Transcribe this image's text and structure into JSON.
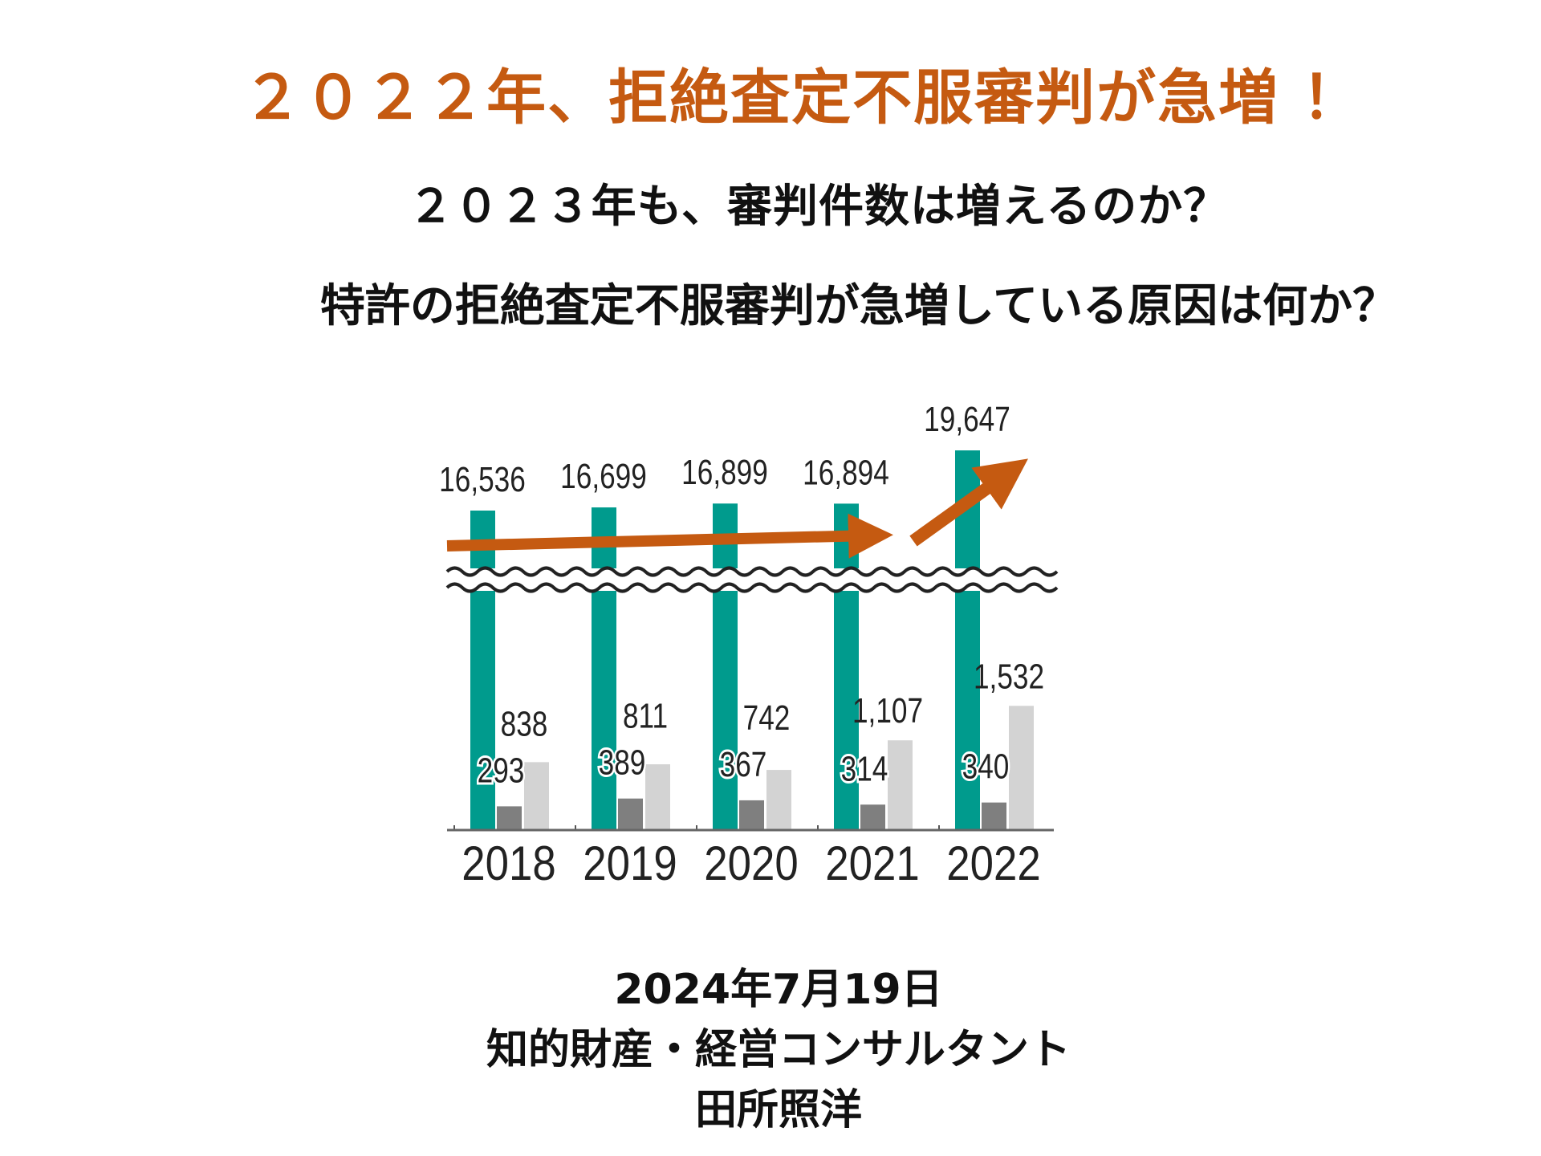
{
  "title": "２０２２年、拒絶査定不服審判が急増 ！",
  "subtitle_1": "２０２３年も、審判件数は増えるのか？",
  "subtitle_2": "特許の拒絶査定不服審判が急増している原因は何か？",
  "footer": {
    "date": "2024年7月19日",
    "role": "知的財産・経営コンサルタント",
    "name": "田所照洋"
  },
  "chart_data": {
    "type": "bar",
    "categories": [
      "2018",
      "2019",
      "2020",
      "2021",
      "2022"
    ],
    "series": [
      {
        "values": [
          16536,
          16699,
          16899,
          16894,
          19647
        ],
        "color": "#009b8d",
        "labels": [
          "16,536",
          "16,699",
          "16,899",
          "16,894",
          "19,647"
        ]
      },
      {
        "values": [
          293,
          389,
          367,
          314,
          340
        ],
        "color": "#7f7f7f",
        "labels": [
          "293",
          "389",
          "367",
          "314",
          "340"
        ]
      },
      {
        "values": [
          838,
          811,
          742,
          1107,
          1532
        ],
        "color": "#d3d3d3",
        "labels": [
          "838",
          "811",
          "742",
          "1,107",
          "1,532"
        ]
      }
    ],
    "axis_break": true,
    "grid": false,
    "annotation_arrows_color": "#c55a11"
  }
}
